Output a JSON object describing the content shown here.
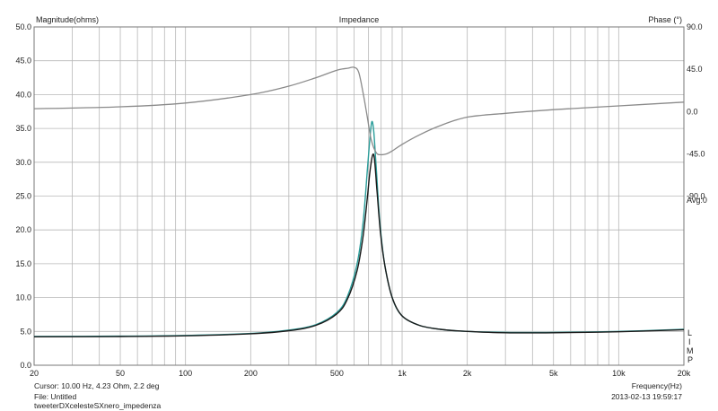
{
  "chart_data": {
    "type": "line",
    "title": "Impedance",
    "ylabel_left": "Magnitude(ohms)",
    "ylabel_right": "Phase (°)",
    "xlabel": "Frequency(Hz)",
    "x_scale": "log",
    "xlim": [
      20,
      20000
    ],
    "ylim_left": [
      0,
      50
    ],
    "ylim_right": [
      -270,
      90
    ],
    "x_ticks": [
      {
        "value": 20,
        "label": "20"
      },
      {
        "value": 50,
        "label": "50"
      },
      {
        "value": 100,
        "label": "100"
      },
      {
        "value": 200,
        "label": "200"
      },
      {
        "value": 500,
        "label": "500"
      },
      {
        "value": 1000,
        "label": "1k"
      },
      {
        "value": 2000,
        "label": "2k"
      },
      {
        "value": 5000,
        "label": "5k"
      },
      {
        "value": 10000,
        "label": "10k"
      },
      {
        "value": 20000,
        "label": "20k"
      }
    ],
    "y_ticks_left": [
      "0.0",
      "5.0",
      "10.0",
      "15.0",
      "20.0",
      "25.0",
      "30.0",
      "35.0",
      "40.0",
      "45.0",
      "50.0"
    ],
    "y_ticks_right": [
      {
        "value": 90,
        "label": "90.0"
      },
      {
        "value": 45,
        "label": "45.0"
      },
      {
        "value": 0,
        "label": "0.0"
      },
      {
        "value": -45,
        "label": "-45.0"
      },
      {
        "value": -90,
        "label": "-90.0"
      }
    ],
    "avg_label": "Avg:0",
    "side_letters": [
      "L",
      "I",
      "M",
      "P"
    ],
    "grid": true,
    "series": [
      {
        "axis": "left",
        "color": "#2a9d9a",
        "x": [
          20,
          50,
          100,
          200,
          300,
          400,
          500,
          560,
          620,
          660,
          690,
          710,
          725,
          740,
          760,
          790,
          830,
          900,
          1000,
          1200,
          1500,
          2000,
          3000,
          5000,
          10000,
          20000
        ],
        "y": [
          4.25,
          4.3,
          4.4,
          4.7,
          5.2,
          6.0,
          7.8,
          10.2,
          15.0,
          21.0,
          28.5,
          33.5,
          36.0,
          34.5,
          29.0,
          21.0,
          15.0,
          10.0,
          7.3,
          5.9,
          5.3,
          5.0,
          4.85,
          4.85,
          5.0,
          5.3
        ]
      },
      {
        "axis": "left",
        "color": "#1a1a1a",
        "x": [
          20,
          50,
          100,
          200,
          300,
          400,
          500,
          560,
          620,
          660,
          690,
          710,
          730,
          745,
          765,
          795,
          835,
          900,
          1000,
          1200,
          1500,
          2000,
          3000,
          5000,
          10000,
          20000
        ],
        "y": [
          4.2,
          4.25,
          4.35,
          4.65,
          5.1,
          5.9,
          7.6,
          9.8,
          14.0,
          19.0,
          24.5,
          28.5,
          31.0,
          30.5,
          26.0,
          19.5,
          14.5,
          10.0,
          7.3,
          5.9,
          5.3,
          5.0,
          4.8,
          4.8,
          4.95,
          5.25
        ]
      },
      {
        "axis": "right",
        "color": "#8a8a8a",
        "x": [
          20,
          50,
          100,
          200,
          300,
          400,
          500,
          560,
          600,
          630,
          660,
          690,
          720,
          760,
          800,
          850,
          900,
          1000,
          1200,
          1500,
          2000,
          3000,
          5000,
          10000,
          20000
        ],
        "y": [
          3,
          5,
          9,
          18,
          27,
          36,
          44,
          46,
          47,
          42,
          20,
          -5,
          -30,
          -44,
          -46,
          -45,
          -42,
          -35,
          -25,
          -15,
          -6,
          -2,
          2,
          6,
          10
        ]
      }
    ]
  },
  "status": {
    "cursor": "Cursor:  10.00 Hz, 4.23 Ohm, 2.2 deg",
    "file": "File: Untitled",
    "trace_name": "tweeterDXcelesteSXnero_impedenza",
    "freq_label": "Frequency(Hz)",
    "timestamp": "2013-02-13 19:59:17"
  }
}
